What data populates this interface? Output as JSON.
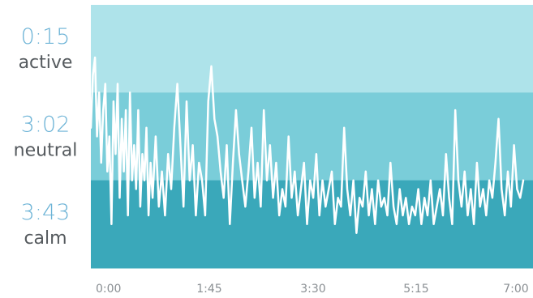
{
  "chart_data": {
    "type": "line",
    "title": "",
    "xlabel": "",
    "ylabel": "",
    "x_ticks": [
      "0:00",
      "1:45",
      "3:30",
      "5:15",
      "7:00"
    ],
    "x_range_minutes": [
      0,
      420
    ],
    "zones": [
      {
        "name": "active",
        "duration": "0:15",
        "color": "#aee3ea"
      },
      {
        "name": "neutral",
        "duration": "3:02",
        "color": "#7acdd9"
      },
      {
        "name": "calm",
        "duration": "3:43",
        "color": "#3aa8ba"
      }
    ],
    "line_color": "#ffffff",
    "y_range": [
      0,
      3
    ],
    "series": [
      {
        "x": [
          0,
          2,
          4,
          6,
          8,
          10,
          12,
          14,
          16,
          18,
          20,
          22,
          24,
          26,
          28,
          30,
          32,
          34,
          36,
          38,
          40,
          42,
          44,
          46,
          48,
          50,
          52,
          54,
          56,
          58,
          60,
          63,
          66,
          69,
          72,
          75,
          78,
          81,
          84,
          87,
          90,
          93,
          96,
          99,
          102,
          105,
          108,
          111,
          114,
          117,
          120,
          123,
          126,
          129,
          132,
          135,
          138,
          141,
          144,
          147,
          150,
          153,
          156,
          159,
          162,
          165,
          168,
          171,
          174,
          177,
          180,
          183,
          186,
          189,
          192,
          195,
          198,
          201,
          204,
          207,
          210,
          213,
          216,
          219,
          222,
          225,
          228,
          231,
          234,
          237,
          240,
          243,
          246,
          249,
          252,
          255,
          258,
          261,
          264,
          267,
          270,
          273,
          276,
          279,
          282,
          285,
          288,
          291,
          294,
          297,
          300,
          303,
          306,
          309,
          312,
          315,
          318,
          321,
          324,
          327,
          330,
          333,
          336,
          339,
          342,
          345,
          348,
          351,
          354,
          357,
          360,
          363,
          366,
          369,
          372,
          375,
          378,
          381,
          384,
          387,
          390,
          393,
          396,
          399,
          402,
          405,
          408,
          411,
          414,
          417,
          420
        ],
        "values": [
          1.6,
          2.2,
          2.4,
          1.5,
          2.0,
          1.2,
          1.8,
          2.1,
          1.1,
          1.5,
          0.5,
          1.9,
          1.3,
          2.1,
          0.8,
          1.7,
          1.1,
          1.8,
          0.6,
          2.0,
          1.0,
          1.4,
          0.9,
          1.8,
          0.7,
          1.3,
          1.0,
          1.6,
          0.6,
          1.2,
          0.8,
          1.5,
          0.7,
          1.1,
          0.6,
          1.3,
          0.9,
          1.6,
          2.1,
          1.4,
          0.7,
          1.9,
          1.0,
          1.4,
          0.6,
          1.2,
          1.0,
          0.6,
          1.9,
          2.3,
          1.7,
          1.5,
          1.1,
          0.8,
          1.4,
          0.5,
          1.2,
          1.8,
          1.3,
          1.0,
          0.7,
          1.1,
          1.6,
          0.8,
          1.2,
          0.7,
          1.8,
          1.0,
          1.4,
          0.8,
          1.2,
          0.6,
          0.9,
          0.7,
          1.5,
          0.8,
          1.1,
          0.6,
          0.9,
          1.2,
          0.5,
          1.0,
          0.8,
          1.3,
          0.6,
          1.0,
          0.7,
          0.9,
          1.1,
          0.5,
          0.8,
          0.7,
          1.6,
          0.9,
          0.6,
          1.0,
          0.4,
          0.8,
          0.7,
          1.1,
          0.6,
          0.9,
          0.5,
          1.0,
          0.7,
          0.8,
          0.6,
          1.2,
          0.7,
          0.5,
          0.9,
          0.6,
          0.8,
          0.5,
          0.7,
          0.6,
          0.9,
          0.5,
          0.8,
          0.6,
          1.0,
          0.5,
          0.7,
          0.9,
          0.6,
          1.3,
          0.8,
          0.5,
          1.8,
          1.0,
          0.7,
          1.1,
          0.6,
          0.9,
          0.5,
          1.2,
          0.7,
          0.9,
          0.6,
          1.0,
          0.8,
          1.2,
          1.7,
          0.9,
          0.6,
          1.1,
          0.7,
          1.4,
          0.9,
          0.8,
          1.0
        ]
      }
    ]
  }
}
